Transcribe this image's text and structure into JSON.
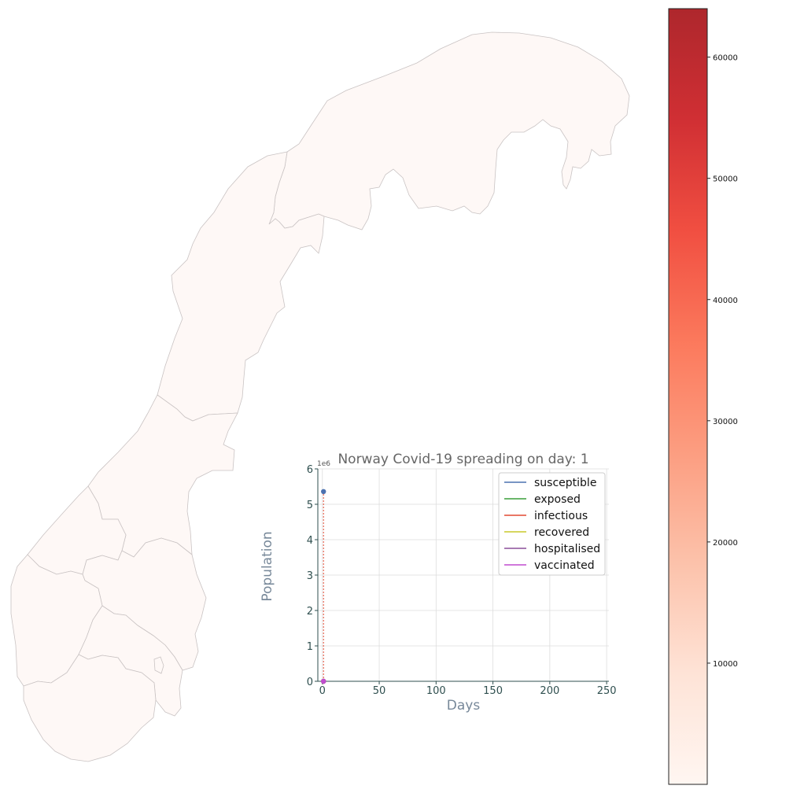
{
  "map": {
    "fill": "#fef8f6",
    "border_color": "#c9c3c3",
    "regions": [
      "region-north",
      "region-troendelag",
      "region-vestland",
      "region-innlandet",
      "region-viken",
      "region-rogaland",
      "region-vestfold-telemark",
      "region-agder",
      "region-oslo"
    ]
  },
  "colorbar": {
    "ticks": [
      "10000",
      "20000",
      "30000",
      "40000",
      "50000",
      "60000"
    ],
    "tick_values": [
      10000,
      20000,
      30000,
      40000,
      50000,
      60000
    ],
    "min": 0,
    "max": 64000,
    "colors": [
      "#fff5f0",
      "#fee0d2",
      "#fcbba1",
      "#fc9272",
      "#fb6a4a",
      "#ef3b2c",
      "#cb181d",
      "#a50f15"
    ]
  },
  "chart_data": {
    "type": "line",
    "title": "Norway Covid-19 spreading on day: 1",
    "xlabel": "Days",
    "ylabel": "Population",
    "y_offset_label": "1e6",
    "xlim": [
      -4,
      252
    ],
    "ylim": [
      0,
      6
    ],
    "x_ticks": [
      0,
      50,
      100,
      150,
      200,
      250
    ],
    "x_tick_labels": [
      "0",
      "50",
      "100",
      "150",
      "200",
      "250"
    ],
    "y_ticks": [
      0,
      1,
      2,
      3,
      4,
      5,
      6
    ],
    "y_tick_labels": [
      "0",
      "1",
      "2",
      "3",
      "4",
      "5",
      "6"
    ],
    "grid": true,
    "legend_position": "top-right",
    "current_day": 1,
    "series": [
      {
        "name": "susceptible",
        "color": "#4c72b0",
        "x": [
          1
        ],
        "y": [
          5.36
        ]
      },
      {
        "name": "exposed",
        "color": "#3a9e3a",
        "x": [
          1
        ],
        "y": [
          0.0
        ]
      },
      {
        "name": "infectious",
        "color": "#e24a33",
        "x": [
          1
        ],
        "y": [
          0.0
        ]
      },
      {
        "name": "recovered",
        "color": "#c9c92a",
        "x": [
          1
        ],
        "y": [
          0.0
        ]
      },
      {
        "name": "hospitalised",
        "color": "#8c4f9a",
        "x": [
          1
        ],
        "y": [
          0.0
        ]
      },
      {
        "name": "vaccinated",
        "color": "#c04ccf",
        "x": [
          1
        ],
        "y": [
          0.0
        ]
      }
    ]
  }
}
